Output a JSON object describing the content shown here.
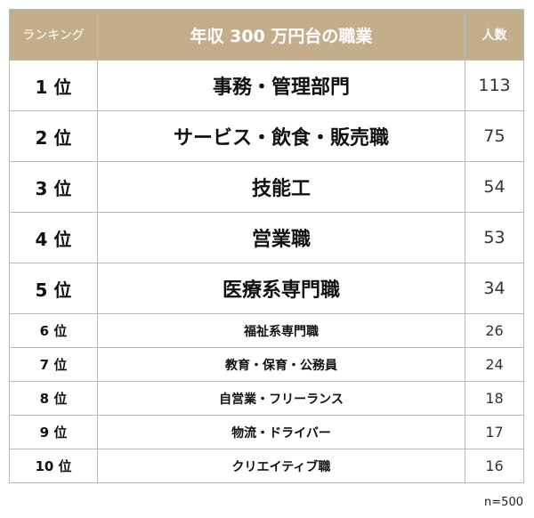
{
  "table": {
    "header": {
      "rank": "ランキング",
      "title": "年収 300 万円台の職業",
      "count": "人数"
    },
    "rows": [
      {
        "rank": "1 位",
        "occupation": "事務・管理部門",
        "count": "113"
      },
      {
        "rank": "2 位",
        "occupation": "サービス・飲食・販売職",
        "count": "75"
      },
      {
        "rank": "3 位",
        "occupation": "技能工",
        "count": "54"
      },
      {
        "rank": "4 位",
        "occupation": "営業職",
        "count": "53"
      },
      {
        "rank": "5 位",
        "occupation": "医療系専門職",
        "count": "34"
      },
      {
        "rank": "6 位",
        "occupation": "福祉系専門職",
        "count": "26"
      },
      {
        "rank": "7 位",
        "occupation": "教育・保育・公務員",
        "count": "24"
      },
      {
        "rank": "8 位",
        "occupation": "自営業・フリーランス",
        "count": "18"
      },
      {
        "rank": "9 位",
        "occupation": "物流・ドライバー",
        "count": "17"
      },
      {
        "rank": "10 位",
        "occupation": "クリエイティブ職",
        "count": "16"
      }
    ]
  },
  "colors": {
    "header_background": "#c3ad8b",
    "header_text": "#ffffff",
    "border": "#b9b9b9"
  },
  "note": "n=500"
}
